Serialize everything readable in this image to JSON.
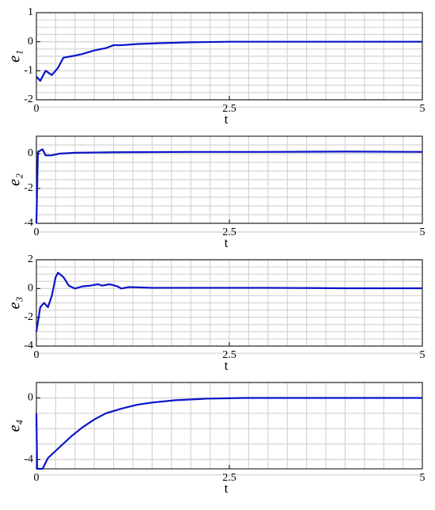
{
  "chart_data": [
    {
      "type": "line",
      "xlabel": "t",
      "ylabel": "e₁",
      "x": [
        0,
        0.05,
        0.12,
        0.2,
        0.28,
        0.35,
        0.5,
        0.6,
        0.75,
        0.9,
        1.0,
        1.1,
        1.3,
        1.6,
        2.0,
        2.5,
        3.0,
        4.0,
        5.0
      ],
      "series": [
        {
          "color": "#0a14c8",
          "values": [
            -1.2,
            -1.35,
            -1.0,
            -1.15,
            -0.9,
            -0.55,
            -0.48,
            -0.42,
            -0.3,
            -0.22,
            -0.12,
            -0.12,
            -0.08,
            -0.05,
            -0.02,
            0,
            0,
            0,
            0
          ]
        }
      ],
      "xlim": [
        0,
        5
      ],
      "xticks": [
        0,
        2.5,
        5
      ],
      "ylim": [
        -2,
        1
      ],
      "yticks": [
        -2,
        -1,
        0,
        1
      ],
      "grid": true
    },
    {
      "type": "line",
      "xlabel": "t",
      "ylabel": "e₂",
      "x": [
        0,
        0.02,
        0.08,
        0.12,
        0.2,
        0.3,
        0.5,
        1.0,
        2.0,
        3.0,
        4.0,
        5.0
      ],
      "series": [
        {
          "color": "#0a14c8",
          "values": [
            -4,
            0.1,
            0.25,
            -0.1,
            -0.1,
            0.0,
            0.05,
            0.08,
            0.1,
            0.1,
            0.12,
            0.1
          ]
        }
      ],
      "xlim": [
        0,
        5
      ],
      "xticks": [
        0,
        2.5,
        5
      ],
      "ylim": [
        -4,
        1
      ],
      "yticks": [
        -4,
        -2,
        0
      ],
      "grid": true
    },
    {
      "type": "line",
      "xlabel": "t",
      "ylabel": "e₃",
      "x": [
        0,
        0.05,
        0.1,
        0.15,
        0.2,
        0.25,
        0.28,
        0.35,
        0.42,
        0.5,
        0.6,
        0.7,
        0.8,
        0.85,
        0.95,
        1.05,
        1.1,
        1.2,
        1.5,
        2.0,
        3.0,
        4.0,
        5.0
      ],
      "series": [
        {
          "color": "#0a14c8",
          "values": [
            -3,
            -1.3,
            -1,
            -1.3,
            -0.5,
            0.8,
            1.1,
            0.8,
            0.2,
            0,
            0.15,
            0.2,
            0.3,
            0.2,
            0.3,
            0.15,
            0,
            0.1,
            0.05,
            0.05,
            0.05,
            0.02,
            0.02
          ]
        }
      ],
      "xlim": [
        0,
        5
      ],
      "xticks": [
        0,
        2.5,
        5
      ],
      "ylim": [
        -4,
        2
      ],
      "yticks": [
        -4,
        -2,
        0,
        2
      ],
      "grid": true
    },
    {
      "type": "line",
      "xlabel": "t",
      "ylabel": "e₄",
      "x": [
        0,
        0.01,
        0.08,
        0.15,
        0.3,
        0.45,
        0.6,
        0.75,
        0.9,
        1.1,
        1.3,
        1.5,
        1.8,
        2.2,
        2.7,
        3.5,
        5.0
      ],
      "series": [
        {
          "color": "#0a14c8",
          "values": [
            -1,
            -4.6,
            -4.6,
            -3.9,
            -3.2,
            -2.5,
            -1.9,
            -1.4,
            -1.0,
            -0.7,
            -0.45,
            -0.3,
            -0.15,
            -0.05,
            0,
            0,
            0
          ]
        }
      ],
      "xlim": [
        0,
        5
      ],
      "xticks": [
        0,
        2.5,
        5
      ],
      "ylim": [
        -4.6,
        1
      ],
      "yticks": [
        -4,
        0
      ],
      "grid": true
    }
  ]
}
